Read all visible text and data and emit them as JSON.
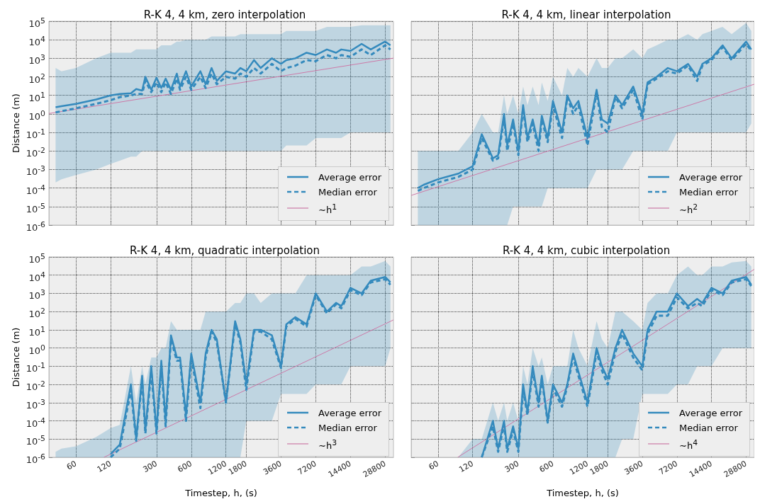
{
  "chart_data": [
    {
      "type": "line",
      "title": "R-K 4, 4 km, zero interpolation",
      "ylabel": "Distance (m)",
      "log": "xy",
      "grid": true,
      "legend": "bottom right",
      "tick_labels": "y",
      "x": [
        40,
        45,
        60,
        90,
        120,
        144,
        180,
        200,
        225,
        240,
        270,
        300,
        330,
        360,
        400,
        450,
        480,
        540,
        600,
        720,
        800,
        900,
        1000,
        1200,
        1440,
        1600,
        1800,
        2100,
        2400,
        3000,
        3600,
        4000,
        4800,
        6000,
        7200,
        9000,
        10800,
        12000,
        14400,
        18000,
        21600,
        28800,
        32000
      ],
      "xlim": [
        35,
        34000
      ],
      "xticks": [
        60,
        120,
        300,
        600,
        1200,
        1800,
        3600,
        7200,
        14400,
        28800
      ],
      "ylim": [
        1e-06,
        100000
      ],
      "yticks": [
        {
          "value": 1e-06,
          "label": "10$^{-6}$"
        },
        {
          "value": 1e-05,
          "label": "10$^{-5}$"
        },
        {
          "value": 0.0001,
          "label": "10$^{-4}$"
        },
        {
          "value": 0.001,
          "label": "10$^{-3}$"
        },
        {
          "value": 0.01,
          "label": "10$^{-2}$"
        },
        {
          "value": 0.1,
          "label": "10$^{-1}$"
        },
        {
          "value": 1,
          "label": "10$^{0}$"
        },
        {
          "value": 10,
          "label": "10$^{1}$"
        },
        {
          "value": 100,
          "label": "10$^{2}$"
        },
        {
          "value": 1000,
          "label": "10$^{3}$"
        },
        {
          "value": 10000,
          "label": "10$^{4}$"
        },
        {
          "value": 100000,
          "label": "10$^{5}$"
        }
      ],
      "series": [
        {
          "name": "Average error",
          "color": "#348abd",
          "line_style": "solid",
          "values": [
            2.3,
            2.6,
            3.5,
            6,
            10,
            12,
            13,
            22,
            18,
            100,
            20,
            90,
            25,
            80,
            20,
            150,
            30,
            200,
            30,
            200,
            40,
            300,
            60,
            200,
            150,
            300,
            200,
            800,
            300,
            1000,
            500,
            800,
            1000,
            2000,
            1500,
            3000,
            2000,
            3000,
            2500,
            6000,
            3000,
            8000,
            5000
          ],
          "lower": [
            0.0002,
            0.0003,
            0.0005,
            0.001,
            0.002,
            0.003,
            0.005,
            0.005,
            0.01,
            0.01,
            0.01,
            0.01,
            0.01,
            0.01,
            0.01,
            0.01,
            0.01,
            0.01,
            0.01,
            0.01,
            0.01,
            0.01,
            0.01,
            0.01,
            0.01,
            0.01,
            0.01,
            0.01,
            0.01,
            0.01,
            0.01,
            0.02,
            0.02,
            0.02,
            0.05,
            0.05,
            0.05,
            0.05,
            0.1,
            0.1,
            0.1,
            0.1,
            0.1
          ],
          "upper": [
            300,
            200,
            300,
            1000,
            2000,
            2000,
            2000,
            3000,
            3000,
            3000,
            3000,
            3000,
            5000,
            5000,
            5000,
            8000,
            8000,
            10000,
            10000,
            10000,
            10000,
            15000,
            15000,
            15000,
            15000,
            20000,
            20000,
            20000,
            20000,
            20000,
            20000,
            30000,
            30000,
            30000,
            30000,
            50000,
            50000,
            50000,
            50000,
            60000,
            60000,
            60000,
            60000
          ]
        },
        {
          "name": "Median error",
          "color": "#348abd",
          "line_style": "dashed",
          "values": [
            1.2,
            1.4,
            2,
            3.5,
            5.5,
            8,
            10,
            12,
            12,
            60,
            15,
            50,
            15,
            50,
            12,
            80,
            20,
            100,
            20,
            100,
            25,
            150,
            40,
            100,
            80,
            150,
            100,
            300,
            150,
            500,
            200,
            300,
            400,
            800,
            700,
            1500,
            1000,
            1500,
            1200,
            3000,
            1500,
            5000,
            3000
          ]
        },
        {
          "name": "∼h$^{1}$",
          "color": "#cc79a7",
          "line_style": "solid",
          "x": [
            35,
            34000
          ],
          "values": [
            1.05,
            1020
          ]
        }
      ]
    },
    {
      "type": "line",
      "title": "R-K 4, 4 km, linear interpolation",
      "log": "xy",
      "grid": true,
      "legend": "bottom right",
      "tick_labels": false,
      "x": [
        40,
        45,
        60,
        90,
        120,
        144,
        180,
        200,
        225,
        240,
        270,
        300,
        330,
        360,
        400,
        450,
        480,
        540,
        600,
        720,
        800,
        900,
        1000,
        1200,
        1440,
        1600,
        1800,
        2100,
        2400,
        3000,
        3600,
        4000,
        4800,
        6000,
        7200,
        9000,
        10800,
        12000,
        14400,
        18000,
        21600,
        28800,
        32000
      ],
      "xlim": [
        35,
        34000
      ],
      "xticks": [
        60,
        120,
        300,
        600,
        1200,
        1800,
        3600,
        7200,
        14400,
        28800
      ],
      "ylim": [
        1e-06,
        100000
      ],
      "yticks": [
        {
          "value": 1e-06,
          "label": null
        },
        {
          "value": 1e-05,
          "label": null
        },
        {
          "value": 0.0001,
          "label": null
        },
        {
          "value": 0.001,
          "label": null
        },
        {
          "value": 0.01,
          "label": null
        },
        {
          "value": 0.1,
          "label": null
        },
        {
          "value": 1,
          "label": null
        },
        {
          "value": 10,
          "label": null
        },
        {
          "value": 100,
          "label": null
        },
        {
          "value": 1000,
          "label": null
        },
        {
          "value": 10000,
          "label": null
        },
        {
          "value": 100000,
          "label": null
        }
      ],
      "series": [
        {
          "name": "Average error",
          "color": "#348abd",
          "line_style": "solid",
          "values": [
            0.0001,
            0.00015,
            0.0003,
            0.0006,
            0.0015,
            0.08,
            0.004,
            0.006,
            1,
            0.02,
            0.5,
            0.01,
            3,
            0.05,
            0.5,
            0.02,
            0.8,
            0.05,
            5,
            0.1,
            10,
            2,
            5,
            0.05,
            20,
            0.5,
            0.3,
            10,
            3,
            30,
            1,
            50,
            100,
            300,
            200,
            500,
            100,
            500,
            1000,
            5000,
            1000,
            8000,
            3000
          ],
          "lower": [
            1e-06,
            1e-06,
            1e-06,
            1e-06,
            1e-06,
            1e-06,
            1e-06,
            1e-06,
            1e-06,
            1e-06,
            1e-05,
            1e-05,
            1e-05,
            1e-05,
            1e-05,
            1e-05,
            1e-05,
            0.0001,
            0.0001,
            0.0001,
            0.0001,
            0.0001,
            0.0001,
            0.0001,
            0.001,
            0.001,
            0.001,
            0.001,
            0.001,
            0.01,
            0.01,
            0.01,
            0.01,
            0.01,
            0.1,
            0.1,
            0.1,
            0.1,
            0.1,
            0.1,
            0.1,
            0.1,
            0.3
          ],
          "upper": [
            0.01,
            0.01,
            0.01,
            0.01,
            0.1,
            1,
            0.1,
            0.1,
            10,
            1,
            10,
            1,
            30,
            3,
            30,
            3,
            50,
            5,
            100,
            10,
            300,
            100,
            300,
            100,
            1000,
            300,
            300,
            1000,
            1000,
            3000,
            1000,
            3000,
            5000,
            10000,
            10000,
            20000,
            10000,
            20000,
            30000,
            50000,
            20000,
            80000,
            30000
          ]
        },
        {
          "name": "Median error",
          "color": "#348abd",
          "line_style": "dashed",
          "values": [
            7e-05,
            0.0001,
            0.0002,
            0.0004,
            0.001,
            0.05,
            0.003,
            0.004,
            0.6,
            0.01,
            0.3,
            0.006,
            2,
            0.03,
            0.3,
            0.01,
            0.5,
            0.03,
            3,
            0.05,
            8,
            1,
            3,
            0.02,
            15,
            0.2,
            0.1,
            8,
            2,
            20,
            0.5,
            40,
            80,
            200,
            150,
            400,
            60,
            400,
            800,
            4000,
            800,
            6000,
            2500
          ]
        },
        {
          "name": "∼h$^{2}$",
          "color": "#cc79a7",
          "line_style": "solid",
          "x": [
            35,
            34000
          ],
          "values": [
            4e-05,
            40
          ]
        }
      ]
    },
    {
      "type": "line",
      "title": "R-K 4, 4 km, quadratic interpolation",
      "xlabel": "Timestep, h, (s)",
      "ylabel": "Distance (m)",
      "log": "xy",
      "grid": true,
      "legend": "bottom right",
      "x": [
        40,
        45,
        60,
        90,
        120,
        144,
        180,
        200,
        225,
        240,
        270,
        300,
        330,
        360,
        400,
        450,
        480,
        540,
        600,
        720,
        800,
        900,
        1000,
        1200,
        1440,
        1600,
        1800,
        2100,
        2400,
        3000,
        3600,
        4000,
        4800,
        6000,
        7200,
        9000,
        10800,
        12000,
        14400,
        18000,
        21600,
        28800,
        32000
      ],
      "xlim": [
        35,
        34000
      ],
      "xticks": [
        60,
        120,
        300,
        600,
        1200,
        1800,
        3600,
        7200,
        14400,
        28800
      ],
      "ylim": [
        1e-06,
        100000
      ],
      "yticks": [
        {
          "value": 1e-06,
          "label": "10$^{-6}$"
        },
        {
          "value": 1e-05,
          "label": "10$^{-5}$"
        },
        {
          "value": 0.0001,
          "label": "10$^{-4}$"
        },
        {
          "value": 0.001,
          "label": "10$^{-3}$"
        },
        {
          "value": 0.01,
          "label": "10$^{-2}$"
        },
        {
          "value": 0.1,
          "label": "10$^{-1}$"
        },
        {
          "value": 1,
          "label": "10$^{0}$"
        },
        {
          "value": 10,
          "label": "10$^{1}$"
        },
        {
          "value": 100,
          "label": "10$^{2}$"
        },
        {
          "value": 1000,
          "label": "10$^{3}$"
        },
        {
          "value": 10000,
          "label": "10$^{4}$"
        },
        {
          "value": 100000,
          "label": "10$^{5}$"
        }
      ],
      "series": [
        {
          "name": "Average error",
          "color": "#348abd",
          "line_style": "solid",
          "values": [
            null,
            null,
            null,
            null,
            1.5e-06,
            5e-06,
            0.01,
            1e-05,
            0.03,
            3e-05,
            0.1,
            3e-05,
            0.2,
            0.0001,
            5,
            0.3,
            0.3,
            0.0002,
            0.5,
            0.001,
            0.5,
            10,
            3,
            0.001,
            30,
            3,
            0.01,
            10,
            10,
            5,
            0.1,
            20,
            50,
            20,
            1000,
            100,
            300,
            200,
            2000,
            1000,
            5000,
            8000,
            4000
          ],
          "lower": [
            1e-06,
            1e-06,
            1e-06,
            1e-06,
            1e-06,
            1e-06,
            1e-06,
            1e-06,
            1e-06,
            1e-06,
            1e-06,
            1e-06,
            1e-06,
            1e-06,
            1e-06,
            1e-06,
            1e-06,
            1e-06,
            1e-06,
            1e-06,
            1e-06,
            1e-06,
            1e-06,
            1e-06,
            1e-06,
            1e-06,
            0.0001,
            0.0001,
            0.0001,
            0.0001,
            0.003,
            0.003,
            0.003,
            0.003,
            0.01,
            0.01,
            0.01,
            0.01,
            0.1,
            0.1,
            0.1,
            0.1,
            1
          ],
          "upper": [
            2e-06,
            3e-06,
            4e-06,
            1.3e-05,
            4e-05,
            6e-05,
            0.1,
            0.001,
            0.1,
            0.01,
            0.3,
            0.3,
            1,
            1,
            30,
            10,
            10,
            10,
            10,
            10,
            100,
            100,
            100,
            100,
            300,
            300,
            1000,
            1000,
            300,
            1000,
            1000,
            1000,
            1000,
            10000,
            10000,
            10000,
            10000,
            10000,
            10000,
            30000,
            30000,
            60000,
            30000
          ]
        },
        {
          "name": "Median error",
          "color": "#348abd",
          "line_style": "dashed",
          "values": [
            null,
            null,
            null,
            null,
            1e-06,
            3e-06,
            0.005,
            8e-06,
            0.02,
            2e-05,
            0.05,
            2e-05,
            0.1,
            5e-05,
            3,
            0.2,
            0.2,
            0.0001,
            0.3,
            0.0005,
            0.3,
            8,
            2,
            0.001,
            20,
            2,
            0.005,
            8,
            8,
            3,
            0.08,
            15,
            40,
            15,
            800,
            80,
            250,
            150,
            1500,
            800,
            4000,
            6000,
            3000
          ]
        },
        {
          "name": "∼h$^{3}$",
          "color": "#cc79a7",
          "line_style": "solid",
          "x": [
            105,
            34000
          ],
          "values": [
            1e-06,
            35
          ]
        }
      ]
    },
    {
      "type": "line",
      "title": "R-K 4, 4 km, cubic interpolation",
      "xlabel": "Timestep, h, (s)",
      "log": "xy",
      "grid": true,
      "legend": "bottom right",
      "tick_labels": "x",
      "x": [
        40,
        45,
        60,
        90,
        120,
        144,
        180,
        200,
        225,
        240,
        270,
        300,
        330,
        360,
        400,
        450,
        480,
        540,
        600,
        720,
        800,
        900,
        1000,
        1200,
        1440,
        1600,
        1800,
        2100,
        2400,
        3000,
        3600,
        4000,
        4800,
        6000,
        7200,
        9000,
        10800,
        12000,
        14400,
        18000,
        21600,
        28800,
        32000
      ],
      "xlim": [
        35,
        34000
      ],
      "xticks": [
        60,
        120,
        300,
        600,
        1200,
        1800,
        3600,
        7200,
        14400,
        28800
      ],
      "ylim": [
        1e-06,
        100000
      ],
      "yticks": [
        {
          "value": 1e-06,
          "label": null
        },
        {
          "value": 1e-05,
          "label": null
        },
        {
          "value": 0.0001,
          "label": null
        },
        {
          "value": 0.001,
          "label": null
        },
        {
          "value": 0.01,
          "label": null
        },
        {
          "value": 0.1,
          "label": null
        },
        {
          "value": 1,
          "label": null
        },
        {
          "value": 10,
          "label": null
        },
        {
          "value": 100,
          "label": null
        },
        {
          "value": 1000,
          "label": null
        },
        {
          "value": 10000,
          "label": null
        },
        {
          "value": 100000,
          "label": null
        }
      ],
      "series": [
        {
          "name": "Average error",
          "color": "#348abd",
          "line_style": "solid",
          "values": [
            null,
            null,
            null,
            null,
            null,
            1e-06,
            0.0001,
            3e-06,
            0.0001,
            3e-06,
            5e-05,
            3e-06,
            0.01,
            0.0003,
            0.1,
            0.001,
            0.03,
            0.0001,
            0.01,
            0.001,
            0.01,
            0.5,
            0.05,
            0.001,
            1,
            0.1,
            0.02,
            1,
            10,
            0.5,
            0.1,
            10,
            100,
            100,
            1000,
            200,
            500,
            300,
            2000,
            1000,
            5000,
            8000,
            3000
          ],
          "lower": [
            1e-06,
            1e-06,
            1e-06,
            1e-06,
            1e-06,
            1e-06,
            1e-06,
            1e-06,
            1e-06,
            1e-06,
            1e-06,
            1e-06,
            1e-06,
            1e-06,
            1e-06,
            1e-06,
            1e-06,
            1e-06,
            1e-06,
            1e-06,
            1e-06,
            1e-06,
            1e-06,
            1e-06,
            1e-06,
            1e-06,
            1e-06,
            1e-06,
            1e-05,
            1e-05,
            0.003,
            0.003,
            0.003,
            0.003,
            0.01,
            0.01,
            0.1,
            0.1,
            0.1,
            1,
            1,
            1,
            1
          ],
          "upper": [
            1e-06,
            1e-06,
            1e-06,
            1e-06,
            1e-05,
            1e-05,
            0.001,
            0.0001,
            0.001,
            0.0001,
            0.001,
            0.0001,
            0.1,
            0.01,
            1,
            0.1,
            0.3,
            0.01,
            0.1,
            0.1,
            0.1,
            10,
            1,
            0.1,
            30,
            3,
            1,
            100,
            100,
            30,
            10,
            300,
            1000,
            1000,
            10000,
            30000,
            10000,
            10000,
            30000,
            30000,
            50000,
            60000,
            30000
          ]
        },
        {
          "name": "Median error",
          "color": "#348abd",
          "line_style": "dashed",
          "values": [
            null,
            null,
            null,
            null,
            null,
            1e-06,
            5e-05,
            2e-06,
            6e-05,
            2e-06,
            3e-05,
            2e-06,
            0.005,
            0.0002,
            0.06,
            0.0006,
            0.02,
            8e-05,
            0.006,
            0.0006,
            0.008,
            0.3,
            0.03,
            0.0006,
            0.6,
            0.06,
            0.01,
            0.6,
            6,
            0.3,
            0.06,
            6,
            60,
            60,
            600,
            150,
            300,
            200,
            1500,
            800,
            4000,
            6000,
            2500
          ]
        },
        {
          "name": "∼h$^{4}$",
          "color": "#cc79a7",
          "line_style": "solid",
          "x": [
            89,
            34000
          ],
          "values": [
            1e-06,
            21000
          ]
        }
      ]
    }
  ]
}
